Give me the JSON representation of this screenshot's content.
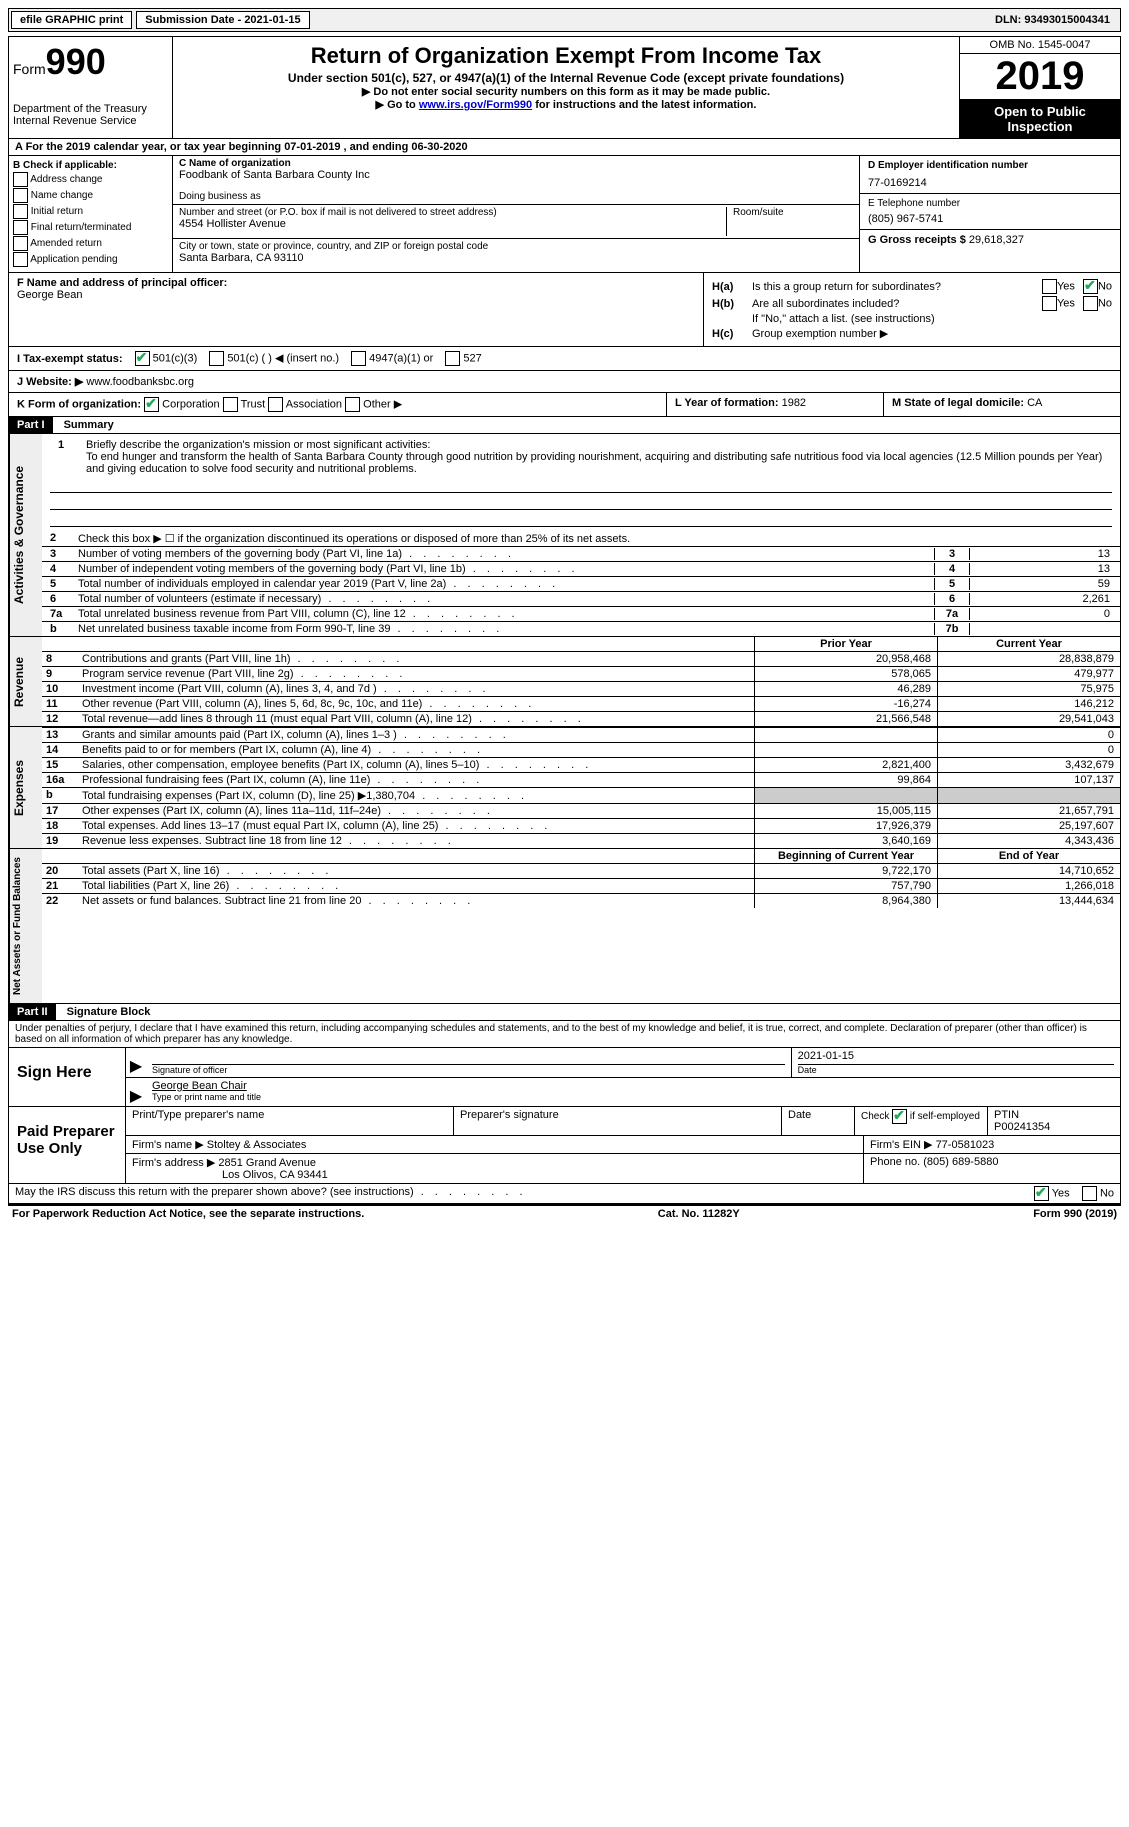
{
  "topbar": {
    "efile": "efile GRAPHIC print",
    "submission": "Submission Date - 2021-01-15",
    "dln": "DLN: 93493015004341"
  },
  "header": {
    "form_word": "Form",
    "form_num": "990",
    "dept": "Department of the Treasury\nInternal Revenue Service",
    "title": "Return of Organization Exempt From Income Tax",
    "subtitle": "Under section 501(c), 527, or 4947(a)(1) of the Internal Revenue Code (except private foundations)",
    "note1": "▶ Do not enter social security numbers on this form as it may be made public.",
    "note2_pre": "▶ Go to ",
    "note2_link": "www.irs.gov/Form990",
    "note2_post": " for instructions and the latest information.",
    "omb": "OMB No. 1545-0047",
    "year": "2019",
    "inspection": "Open to Public Inspection"
  },
  "rowA": "A For the 2019 calendar year, or tax year beginning 07-01-2019    , and ending 06-30-2020",
  "colB": {
    "title": "B Check if applicable:",
    "items": [
      "Address change",
      "Name change",
      "Initial return",
      "Final return/terminated",
      "Amended return",
      "Application pending"
    ]
  },
  "colC": {
    "name_lbl": "C Name of organization",
    "name": "Foodbank of Santa Barbara County Inc",
    "dba_lbl": "Doing business as",
    "dba": "",
    "addr_lbl": "Number and street (or P.O. box if mail is not delivered to street address)",
    "addr": "4554 Hollister Avenue",
    "room_lbl": "Room/suite",
    "city_lbl": "City or town, state or province, country, and ZIP or foreign postal code",
    "city": "Santa Barbara, CA  93110"
  },
  "colD": {
    "ein_lbl": "D Employer identification number",
    "ein": "77-0169214",
    "phone_lbl": "E Telephone number",
    "phone": "(805) 967-5741",
    "gross_lbl": "G Gross receipts $",
    "gross": "29,618,327"
  },
  "colF": {
    "lbl": "F  Name and address of principal officer:",
    "name": "George Bean"
  },
  "colH": {
    "a_lbl": "H(a)",
    "a_txt": "Is this a group return for subordinates?",
    "b_lbl": "H(b)",
    "b_txt": "Are all subordinates included?",
    "b_note": "If \"No,\" attach a list. (see instructions)",
    "c_lbl": "H(c)",
    "c_txt": "Group exemption number ▶",
    "yes": "Yes",
    "no": "No"
  },
  "rowI": {
    "lbl": "I  Tax-exempt status:",
    "o1": "501(c)(3)",
    "o2": "501(c) (  ) ◀ (insert no.)",
    "o3": "4947(a)(1) or",
    "o4": "527"
  },
  "rowJ": {
    "lbl": "J  Website: ▶",
    "val": "www.foodbanksbc.org"
  },
  "rowK": {
    "lbl": "K Form of organization:",
    "o1": "Corporation",
    "o2": "Trust",
    "o3": "Association",
    "o4": "Other ▶"
  },
  "rowL": {
    "lbl": "L Year of formation:",
    "val": "1982"
  },
  "rowM": {
    "lbl": "M State of legal domicile:",
    "val": "CA"
  },
  "part1": {
    "header": "Part I",
    "title": "Summary",
    "side1": "Activities & Governance",
    "side2": "Revenue",
    "side3": "Expenses",
    "side4": "Net Assets or Fund Balances",
    "l1_lbl": "1",
    "l1_pre": "Briefly describe the organization's mission or most significant activities:",
    "l1_txt": "To end hunger and transform the health of Santa Barbara County through good nutrition by providing nourishment, acquiring and distributing safe nutritious food via local agencies (12.5 Million pounds per Year) and giving education to solve food security and nutritional problems.",
    "l2": "Check this box ▶ ☐  if the organization discontinued its operations or disposed of more than 25% of its net assets.",
    "lines_gov": [
      {
        "n": "3",
        "t": "Number of voting members of the governing body (Part VI, line 1a)",
        "bn": "3",
        "v": "13"
      },
      {
        "n": "4",
        "t": "Number of independent voting members of the governing body (Part VI, line 1b)",
        "bn": "4",
        "v": "13"
      },
      {
        "n": "5",
        "t": "Total number of individuals employed in calendar year 2019 (Part V, line 2a)",
        "bn": "5",
        "v": "59"
      },
      {
        "n": "6",
        "t": "Total number of volunteers (estimate if necessary)",
        "bn": "6",
        "v": "2,261"
      },
      {
        "n": "7a",
        "t": "Total unrelated business revenue from Part VIII, column (C), line 12",
        "bn": "7a",
        "v": "0"
      },
      {
        "n": "b",
        "t": "Net unrelated business taxable income from Form 990-T, line 39",
        "bn": "7b",
        "v": ""
      }
    ],
    "rev_header": {
      "c1": "Prior Year",
      "c2": "Current Year"
    },
    "lines_rev": [
      {
        "n": "8",
        "t": "Contributions and grants (Part VIII, line 1h)",
        "c1": "20,958,468",
        "c2": "28,838,879"
      },
      {
        "n": "9",
        "t": "Program service revenue (Part VIII, line 2g)",
        "c1": "578,065",
        "c2": "479,977"
      },
      {
        "n": "10",
        "t": "Investment income (Part VIII, column (A), lines 3, 4, and 7d )",
        "c1": "46,289",
        "c2": "75,975"
      },
      {
        "n": "11",
        "t": "Other revenue (Part VIII, column (A), lines 5, 6d, 8c, 9c, 10c, and 11e)",
        "c1": "-16,274",
        "c2": "146,212"
      },
      {
        "n": "12",
        "t": "Total revenue—add lines 8 through 11 (must equal Part VIII, column (A), line 12)",
        "c1": "21,566,548",
        "c2": "29,541,043"
      }
    ],
    "lines_exp": [
      {
        "n": "13",
        "t": "Grants and similar amounts paid (Part IX, column (A), lines 1–3 )",
        "c1": "",
        "c2": "0"
      },
      {
        "n": "14",
        "t": "Benefits paid to or for members (Part IX, column (A), line 4)",
        "c1": "",
        "c2": "0"
      },
      {
        "n": "15",
        "t": "Salaries, other compensation, employee benefits (Part IX, column (A), lines 5–10)",
        "c1": "2,821,400",
        "c2": "3,432,679"
      },
      {
        "n": "16a",
        "t": "Professional fundraising fees (Part IX, column (A), line 11e)",
        "c1": "99,864",
        "c2": "107,137"
      },
      {
        "n": "b",
        "t": "Total fundraising expenses (Part IX, column (D), line 25) ▶1,380,704",
        "c1": "SHADE",
        "c2": "SHADE"
      },
      {
        "n": "17",
        "t": "Other expenses (Part IX, column (A), lines 11a–11d, 11f–24e)",
        "c1": "15,005,115",
        "c2": "21,657,791"
      },
      {
        "n": "18",
        "t": "Total expenses. Add lines 13–17 (must equal Part IX, column (A), line 25)",
        "c1": "17,926,379",
        "c2": "25,197,607"
      },
      {
        "n": "19",
        "t": "Revenue less expenses. Subtract line 18 from line 12",
        "c1": "3,640,169",
        "c2": "4,343,436"
      }
    ],
    "net_header": {
      "c1": "Beginning of Current Year",
      "c2": "End of Year"
    },
    "lines_net": [
      {
        "n": "20",
        "t": "Total assets (Part X, line 16)",
        "c1": "9,722,170",
        "c2": "14,710,652"
      },
      {
        "n": "21",
        "t": "Total liabilities (Part X, line 26)",
        "c1": "757,790",
        "c2": "1,266,018"
      },
      {
        "n": "22",
        "t": "Net assets or fund balances. Subtract line 21 from line 20",
        "c1": "8,964,380",
        "c2": "13,444,634"
      }
    ]
  },
  "part2": {
    "header": "Part II",
    "title": "Signature Block",
    "perjury": "Under penalties of perjury, I declare that I have examined this return, including accompanying schedules and statements, and to the best of my knowledge and belief, it is true, correct, and complete. Declaration of preparer (other than officer) is based on all information of which preparer has any knowledge.",
    "sign_here": "Sign Here",
    "sig_officer": "Signature of officer",
    "sig_date": "2021-01-15",
    "date_lbl": "Date",
    "officer_name": "George Bean  Chair",
    "officer_cap": "Type or print name and title",
    "paid": "Paid Preparer Use Only",
    "prep_name_lbl": "Print/Type preparer's name",
    "prep_sig_lbl": "Preparer's signature",
    "prep_date_lbl": "Date",
    "prep_chk": "Check ☑ if self-employed",
    "ptin_lbl": "PTIN",
    "ptin": "P00241354",
    "firm_name_lbl": "Firm's name   ▶",
    "firm_name": "Stoltey & Associates",
    "firm_ein_lbl": "Firm's EIN ▶",
    "firm_ein": "77-0581023",
    "firm_addr_lbl": "Firm's address ▶",
    "firm_addr1": "2851 Grand Avenue",
    "firm_addr2": "Los Olivos, CA  93441",
    "firm_phone_lbl": "Phone no.",
    "firm_phone": "(805) 689-5880",
    "discuss": "May the IRS discuss this return with the preparer shown above? (see instructions)"
  },
  "footer": {
    "left": "For Paperwork Reduction Act Notice, see the separate instructions.",
    "mid": "Cat. No. 11282Y",
    "right": "Form 990 (2019)"
  }
}
